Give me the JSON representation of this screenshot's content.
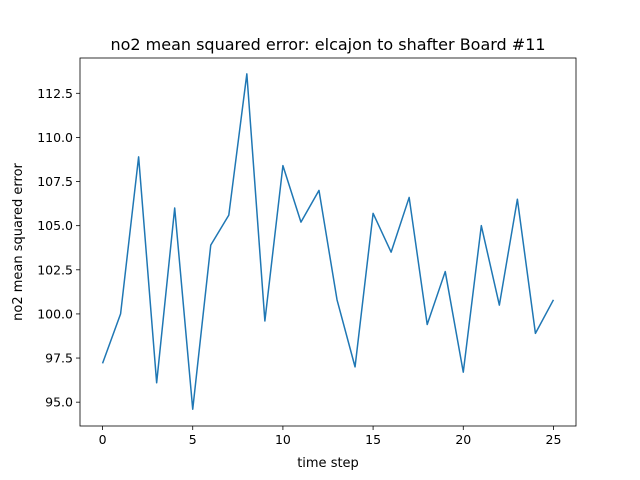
{
  "chart_data": {
    "type": "line",
    "title": "no2 mean squared error: elcajon to shafter Board #11",
    "xlabel": "time step",
    "ylabel": "no2 mean squared error",
    "xlim": [
      -1.25,
      26.25
    ],
    "ylim": [
      93.65,
      114.5
    ],
    "x_ticks": [
      0,
      5,
      10,
      15,
      20,
      25
    ],
    "y_ticks": [
      95.0,
      97.5,
      100.0,
      102.5,
      105.0,
      107.5,
      110.0,
      112.5
    ],
    "grid": false,
    "series": [
      {
        "color": "#1f77b4",
        "x": [
          0,
          1,
          2,
          3,
          4,
          5,
          6,
          7,
          8,
          9,
          10,
          11,
          12,
          13,
          14,
          15,
          16,
          17,
          18,
          19,
          20,
          21,
          22,
          23,
          24,
          25
        ],
        "values": [
          97.2,
          100.0,
          108.9,
          96.1,
          106.0,
          94.6,
          103.9,
          105.6,
          113.6,
          99.6,
          108.4,
          105.2,
          107.0,
          100.8,
          97.0,
          105.7,
          103.5,
          106.6,
          99.4,
          102.4,
          96.7,
          105.0,
          100.5,
          106.5,
          98.9,
          100.8
        ]
      }
    ]
  }
}
